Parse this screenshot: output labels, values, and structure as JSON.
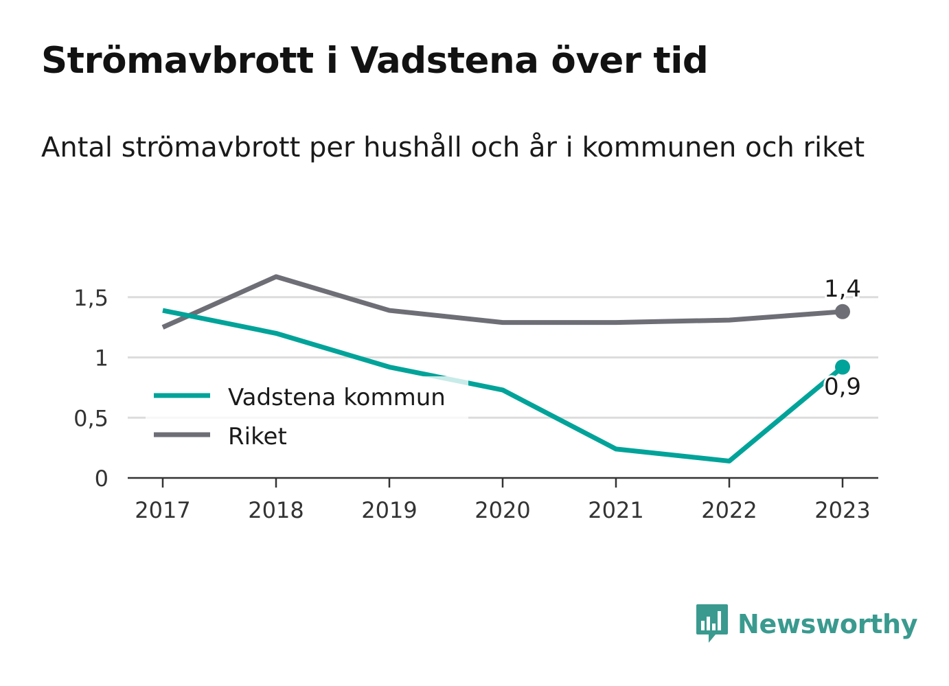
{
  "header": {
    "title": "Strömavbrott i Vadstena över tid",
    "subtitle": "Antal strömavbrott per hushåll och år i kommunen och riket"
  },
  "brand": {
    "name": "Newsworthy",
    "icon": "bar-chart-speech-bubble-icon",
    "color": "#3a9a8f"
  },
  "chart_data": {
    "type": "line",
    "title": "",
    "xlabel": "",
    "ylabel": "",
    "x": [
      "2017",
      "2018",
      "2019",
      "2020",
      "2021",
      "2022",
      "2023"
    ],
    "ylim": [
      0,
      1.5
    ],
    "yticks": [
      {
        "value": 0,
        "label": "0"
      },
      {
        "value": 0.5,
        "label": "0,5"
      },
      {
        "value": 1,
        "label": "1"
      },
      {
        "value": 1.5,
        "label": "1,5"
      }
    ],
    "grid": true,
    "legend_position": "left",
    "series": [
      {
        "name": "Vadstena kommun",
        "color": "#00a399",
        "values": [
          1.39,
          1.2,
          0.92,
          0.73,
          0.24,
          0.14,
          0.92
        ],
        "end_label": "0,9"
      },
      {
        "name": "Riket",
        "color": "#6e6e76",
        "values": [
          1.25,
          1.67,
          1.39,
          1.29,
          1.29,
          1.31,
          1.38
        ],
        "end_label": "1,4"
      }
    ]
  }
}
